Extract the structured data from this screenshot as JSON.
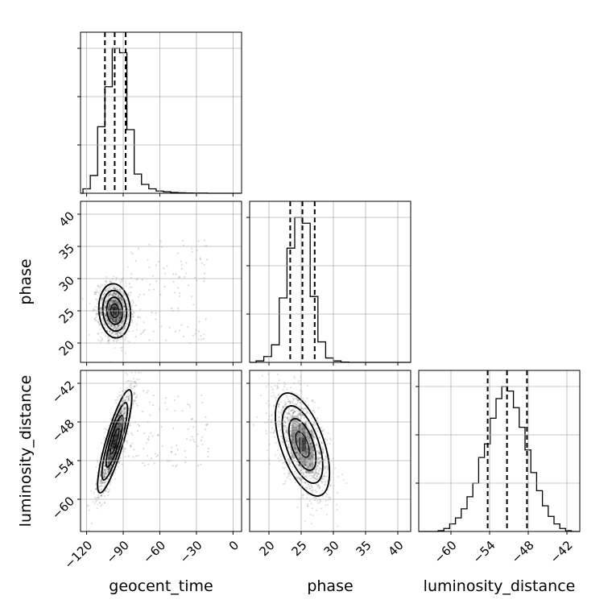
{
  "chart_data": {
    "type": "corner",
    "parameters": [
      {
        "key": "geocent_time",
        "label": "geocent_time",
        "range": [
          -125,
          7
        ],
        "ticks": [
          -120,
          -90,
          -60,
          -30,
          0
        ],
        "tick_labels": [
          "−120",
          "−90",
          "−60",
          "−30",
          "0"
        ]
      },
      {
        "key": "phase",
        "label": "phase",
        "range": [
          17,
          42
        ],
        "ticks": [
          20,
          25,
          30,
          35,
          40
        ],
        "tick_labels": [
          "20",
          "25",
          "30",
          "35",
          "40"
        ]
      },
      {
        "key": "luminosity_distance",
        "label": "luminosity_distance",
        "range": [
          -65,
          -40
        ],
        "ticks": [
          -60,
          -54,
          -48,
          -42
        ],
        "tick_labels": [
          "−60",
          "−54",
          "−48",
          "−42"
        ]
      }
    ],
    "marginals": [
      {
        "param": "geocent_time",
        "quantiles": [
          -105,
          -97,
          -88
        ],
        "bin_edges": [
          -123,
          -117,
          -111,
          -105,
          -99,
          -93,
          -87,
          -81,
          -75,
          -69,
          -63,
          -57,
          -51,
          -45,
          -39,
          -33,
          -27,
          -21
        ],
        "counts": [
          0.03,
          0.12,
          0.45,
          0.72,
          0.98,
          0.95,
          0.43,
          0.13,
          0.06,
          0.03,
          0.015,
          0.01,
          0.005,
          0.003,
          0.002,
          0.001,
          0.001
        ]
      },
      {
        "param": "phase",
        "quantiles": [
          23.3,
          25.2,
          27.1
        ],
        "bin_edges": [
          18,
          19.2,
          20.4,
          21.6,
          22.8,
          24,
          25.2,
          26.4,
          27.6,
          28.8,
          30,
          31.2,
          32.4
        ],
        "counts": [
          0.01,
          0.04,
          0.12,
          0.44,
          0.78,
          0.99,
          0.95,
          0.45,
          0.14,
          0.03,
          0.01,
          0.002
        ]
      },
      {
        "param": "luminosity_distance",
        "quantiles": [
          -54.3,
          -51.3,
          -48.2
        ],
        "bin_edges": [
          -62,
          -61.1,
          -60.2,
          -59.3,
          -58.4,
          -57.5,
          -56.6,
          -55.7,
          -54.8,
          -53.9,
          -53,
          -52.1,
          -51.2,
          -50.3,
          -49.4,
          -48.5,
          -47.6,
          -46.7,
          -45.8,
          -44.9,
          -44,
          -43.1,
          -42.2,
          -41.3
        ],
        "counts": [
          0.005,
          0.02,
          0.05,
          0.09,
          0.15,
          0.23,
          0.32,
          0.49,
          0.58,
          0.75,
          0.88,
          0.96,
          0.93,
          0.82,
          0.69,
          0.54,
          0.39,
          0.27,
          0.17,
          0.1,
          0.05,
          0.02,
          0.005
        ]
      }
    ],
    "pairs": [
      {
        "x": "geocent_time",
        "y": "phase",
        "center": [
          -97,
          25
        ],
        "std": [
          6.5,
          2.1
        ],
        "rho": -0.1,
        "tail": {
          "x": [
            -90,
            -20
          ],
          "y": [
            20,
            36
          ]
        }
      },
      {
        "x": "geocent_time",
        "y": "luminosity_distance",
        "center": [
          -97,
          -51
        ],
        "std": [
          7,
          4
        ],
        "rho": 0.85,
        "tail": {
          "x": [
            -90,
            -20
          ],
          "y": [
            -55,
            -43
          ]
        }
      },
      {
        "x": "phase",
        "y": "luminosity_distance",
        "center": [
          25.2,
          -51.5
        ],
        "std": [
          2.1,
          4
        ],
        "rho": -0.55,
        "tail": null
      }
    ],
    "grid": true,
    "xlabel_row": [
      "geocent_time",
      "phase",
      "luminosity_distance"
    ],
    "ylabels": [
      "phase",
      "luminosity_distance"
    ]
  }
}
